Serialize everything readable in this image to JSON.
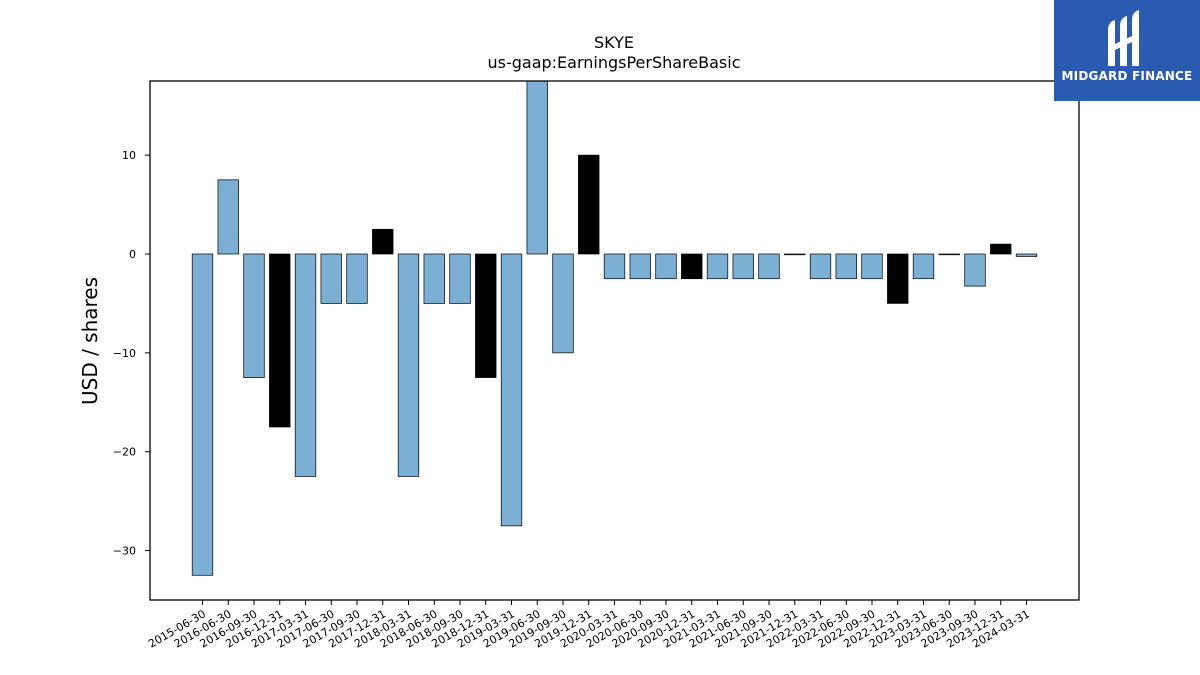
{
  "brand": {
    "name": "MIDGARD FINANCE",
    "icon": "midgard-logo-icon",
    "color": "#2b5bb0"
  },
  "chart_data": {
    "type": "bar",
    "title": "SKYE",
    "subtitle": "us-gaap:EarningsPerShareBasic",
    "xlabel": "",
    "ylabel": "USD / shares",
    "ylim": [
      -35,
      17.5
    ],
    "yticks": [
      10,
      0,
      -10,
      -20,
      -30
    ],
    "grid": false,
    "colors": {
      "default": "#7bafd4",
      "highlight": "#000000"
    },
    "categories": [
      "2015-06-30",
      "2016-06-30",
      "2016-09-30",
      "2016-12-31",
      "2017-03-31",
      "2017-06-30",
      "2017-09-30",
      "2017-12-31",
      "2018-03-31",
      "2018-06-30",
      "2018-09-30",
      "2018-12-31",
      "2019-03-31",
      "2019-06-30",
      "2019-09-30",
      "2019-12-31",
      "2020-03-31",
      "2020-06-30",
      "2020-09-30",
      "2020-12-31",
      "2021-03-31",
      "2021-06-30",
      "2021-09-30",
      "2021-12-31",
      "2022-03-31",
      "2022-06-30",
      "2022-09-30",
      "2022-12-31",
      "2023-03-31",
      "2023-06-30",
      "2023-09-30",
      "2023-12-31",
      "2024-03-31"
    ],
    "values": [
      -32.5,
      7.5,
      -12.5,
      -17.5,
      -22.5,
      -5,
      -5,
      2.5,
      -22.5,
      -5,
      -5,
      -12.5,
      -27.5,
      17.5,
      -10,
      10,
      -2.5,
      -2.5,
      -2.5,
      -2.5,
      -2.5,
      -2.5,
      -2.5,
      0,
      -2.5,
      -2.5,
      -2.5,
      -5,
      -2.5,
      0,
      -3.25,
      1,
      -0.25
    ],
    "highlight": [
      false,
      false,
      false,
      true,
      false,
      false,
      false,
      true,
      false,
      false,
      false,
      true,
      false,
      false,
      false,
      true,
      false,
      false,
      false,
      true,
      false,
      false,
      false,
      false,
      false,
      false,
      false,
      true,
      false,
      false,
      false,
      true,
      false
    ]
  }
}
